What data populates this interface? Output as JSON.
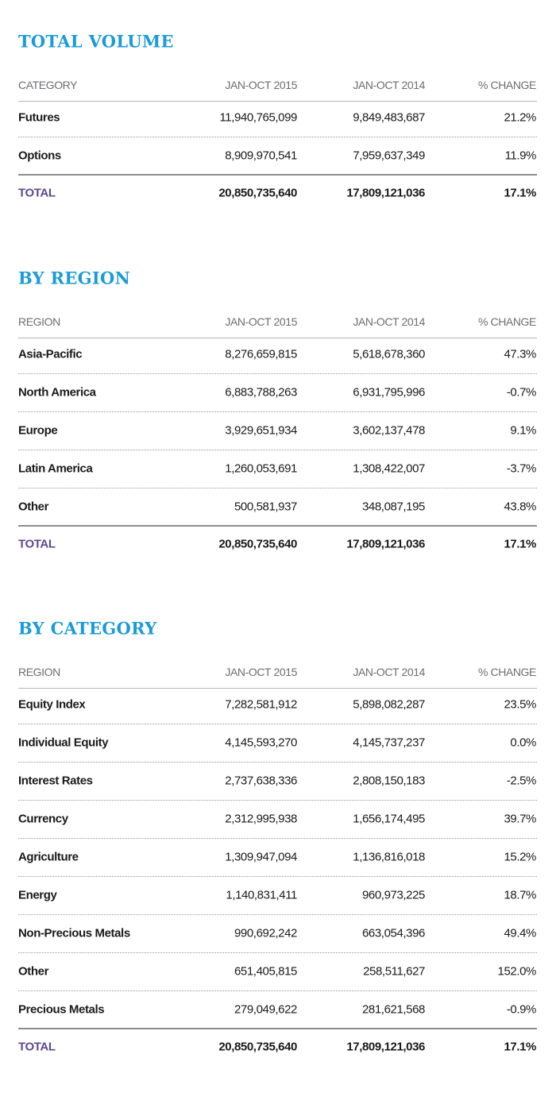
{
  "sections": [
    {
      "title": "TOTAL VOLUME",
      "columns": [
        "CATEGORY",
        "JAN-OCT 2015",
        "JAN-OCT 2014",
        "% CHANGE"
      ],
      "rows": [
        [
          "Futures",
          "11,940,765,099",
          "9,849,483,687",
          "21.2%"
        ],
        [
          "Options",
          "8,909,970,541",
          "7,959,637,349",
          "11.9%"
        ]
      ],
      "total": [
        "TOTAL",
        "20,850,735,640",
        "17,809,121,036",
        "17.1%"
      ]
    },
    {
      "title": "BY REGION",
      "columns": [
        "REGION",
        "JAN-OCT 2015",
        "JAN-OCT 2014",
        "% CHANGE"
      ],
      "rows": [
        [
          "Asia-Pacific",
          "8,276,659,815",
          "5,618,678,360",
          "47.3%"
        ],
        [
          "North America",
          "6,883,788,263",
          "6,931,795,996",
          "-0.7%"
        ],
        [
          "Europe",
          "3,929,651,934",
          "3,602,137,478",
          "9.1%"
        ],
        [
          "Latin America",
          "1,260,053,691",
          "1,308,422,007",
          "-3.7%"
        ],
        [
          "Other",
          "500,581,937",
          "348,087,195",
          "43.8%"
        ]
      ],
      "total": [
        "TOTAL",
        "20,850,735,640",
        "17,809,121,036",
        "17.1%"
      ]
    },
    {
      "title": "BY CATEGORY",
      "columns": [
        "REGION",
        "JAN-OCT 2015",
        "JAN-OCT 2014",
        "% CHANGE"
      ],
      "rows": [
        [
          "Equity Index",
          "7,282,581,912",
          "5,898,082,287",
          "23.5%"
        ],
        [
          "Individual Equity",
          "4,145,593,270",
          "4,145,737,237",
          "0.0%"
        ],
        [
          "Interest Rates",
          "2,737,638,336",
          "2,808,150,183",
          "-2.5%"
        ],
        [
          "Currency",
          "2,312,995,938",
          "1,656,174,495",
          "39.7%"
        ],
        [
          "Agriculture",
          "1,309,947,094",
          "1,136,816,018",
          "15.2%"
        ],
        [
          "Energy",
          "1,140,831,411",
          "960,973,225",
          "18.7%"
        ],
        [
          "Non-Precious Metals",
          "990,692,242",
          "663,054,396",
          "49.4%"
        ],
        [
          "Other",
          "651,405,815",
          "258,511,627",
          "152.0%"
        ],
        [
          "Precious Metals",
          "279,049,622",
          "281,621,568",
          "-0.9%"
        ]
      ],
      "total": [
        "TOTAL",
        "20,850,735,640",
        "17,809,121,036",
        "17.1%"
      ]
    }
  ]
}
